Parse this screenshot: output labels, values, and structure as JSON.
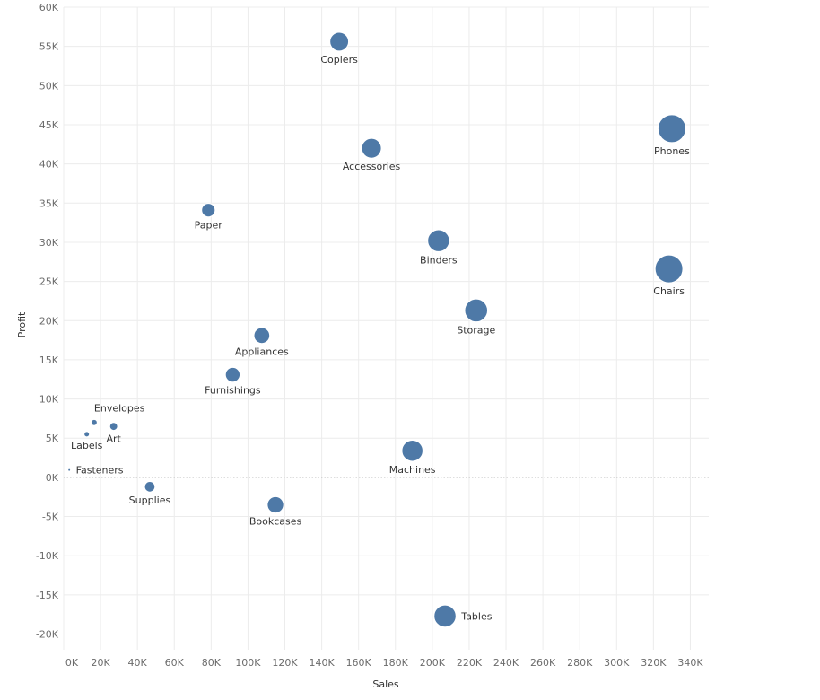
{
  "chart_data": {
    "type": "scatter",
    "title": "",
    "xlabel": "Sales",
    "ylabel": "Profit",
    "xlim": [
      0,
      350000
    ],
    "ylim": [
      -22000,
      60000
    ],
    "x_ticks": [
      0,
      20000,
      40000,
      60000,
      80000,
      100000,
      120000,
      140000,
      160000,
      180000,
      200000,
      220000,
      240000,
      260000,
      280000,
      300000,
      320000,
      340000
    ],
    "x_tick_labels": [
      "0K",
      "20K",
      "40K",
      "60K",
      "80K",
      "100K",
      "120K",
      "140K",
      "160K",
      "180K",
      "200K",
      "220K",
      "240K",
      "260K",
      "280K",
      "300K",
      "320K",
      "340K"
    ],
    "y_ticks": [
      60000,
      55000,
      50000,
      45000,
      40000,
      35000,
      30000,
      25000,
      20000,
      15000,
      10000,
      5000,
      0,
      -5000,
      -10000,
      -15000,
      -20000
    ],
    "y_tick_labels": [
      "60K",
      "55K",
      "50K",
      "45K",
      "40K",
      "35K",
      "30K",
      "25K",
      "20K",
      "15K",
      "10K",
      "5K",
      "0K",
      "-5K",
      "-10K",
      "-15K",
      "-20K"
    ],
    "grid": true,
    "zero_line": true,
    "marker_color": "#4e79a7",
    "size_encodes": "sales",
    "points": [
      {
        "label": "Copiers",
        "x": 149500,
        "y": 55600,
        "label_pos": "below"
      },
      {
        "label": "Phones",
        "x": 330000,
        "y": 44500,
        "label_pos": "below"
      },
      {
        "label": "Accessories",
        "x": 167000,
        "y": 42000,
        "label_pos": "below"
      },
      {
        "label": "Paper",
        "x": 78500,
        "y": 34100,
        "label_pos": "below"
      },
      {
        "label": "Binders",
        "x": 203400,
        "y": 30200,
        "label_pos": "below"
      },
      {
        "label": "Chairs",
        "x": 328400,
        "y": 26600,
        "label_pos": "below"
      },
      {
        "label": "Storage",
        "x": 223800,
        "y": 21300,
        "label_pos": "below"
      },
      {
        "label": "Appliances",
        "x": 107500,
        "y": 18100,
        "label_pos": "below"
      },
      {
        "label": "Furnishings",
        "x": 91700,
        "y": 13100,
        "label_pos": "below"
      },
      {
        "label": "Envelopes",
        "x": 16500,
        "y": 7000,
        "label_pos": "above-right"
      },
      {
        "label": "Art",
        "x": 27100,
        "y": 6500,
        "label_pos": "below"
      },
      {
        "label": "Labels",
        "x": 12500,
        "y": 5500,
        "label_pos": "below"
      },
      {
        "label": "Fasteners",
        "x": 3000,
        "y": 950,
        "label_pos": "right"
      },
      {
        "label": "Machines",
        "x": 189200,
        "y": 3400,
        "label_pos": "below"
      },
      {
        "label": "Supplies",
        "x": 46700,
        "y": -1200,
        "label_pos": "below"
      },
      {
        "label": "Bookcases",
        "x": 114900,
        "y": -3500,
        "label_pos": "below"
      },
      {
        "label": "Tables",
        "x": 206900,
        "y": -17700,
        "label_pos": "right"
      }
    ]
  }
}
